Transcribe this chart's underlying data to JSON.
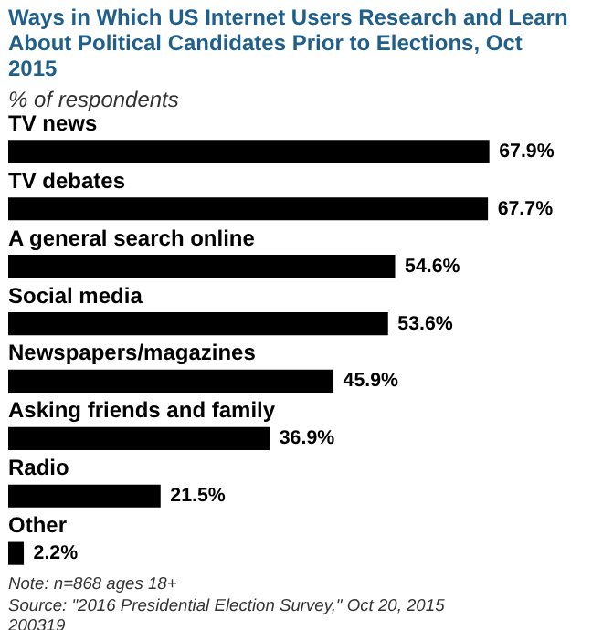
{
  "chart_data": {
    "type": "bar",
    "orientation": "horizontal",
    "title": "Ways in Which US Internet Users Research and Learn About Political Candidates Prior to Elections, Oct 2015",
    "subtitle": "% of respondents",
    "categories": [
      "TV news",
      "TV debates",
      "A general search online",
      "Social media",
      "Newspapers/magazines",
      "Asking friends and family",
      "Radio",
      "Other"
    ],
    "values": [
      67.9,
      67.7,
      54.6,
      53.6,
      45.9,
      36.9,
      21.5,
      2.2
    ],
    "value_labels": [
      "67.9%",
      "67.7%",
      "54.6%",
      "53.6%",
      "45.9%",
      "36.9%",
      "21.5%",
      "2.2%"
    ],
    "color": "#000000",
    "annotations": [
      "Note: n=868 ages 18+",
      "Source: \"2016 Presidential Election Survey,\" Oct 20, 2015",
      "200319"
    ]
  }
}
